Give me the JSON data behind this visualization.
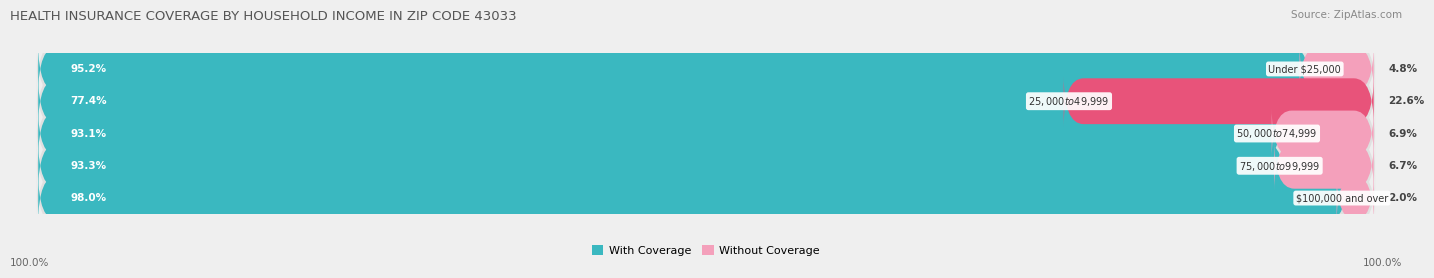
{
  "title": "HEALTH INSURANCE COVERAGE BY HOUSEHOLD INCOME IN ZIP CODE 43033",
  "source": "Source: ZipAtlas.com",
  "categories": [
    "Under $25,000",
    "$25,000 to $49,999",
    "$50,000 to $74,999",
    "$75,000 to $99,999",
    "$100,000 and over"
  ],
  "with_coverage": [
    95.2,
    77.4,
    93.1,
    93.3,
    98.0
  ],
  "without_coverage": [
    4.8,
    22.6,
    6.9,
    6.7,
    2.0
  ],
  "color_with": "#3ab8c0",
  "color_with_light": "#7dd4d8",
  "color_without": [
    "#f4a0bb",
    "#e8537a",
    "#f4a0bb",
    "#f4a0bb",
    "#f4a0bb"
  ],
  "background_color": "#efefef",
  "bar_background": "#e0e0e0",
  "title_fontsize": 9.5,
  "source_fontsize": 7.5,
  "label_fontsize": 7.5,
  "tick_fontsize": 7.5,
  "legend_fontsize": 8,
  "bar_height": 0.62,
  "x_left_label": "100.0%",
  "x_right_label": "100.0%"
}
